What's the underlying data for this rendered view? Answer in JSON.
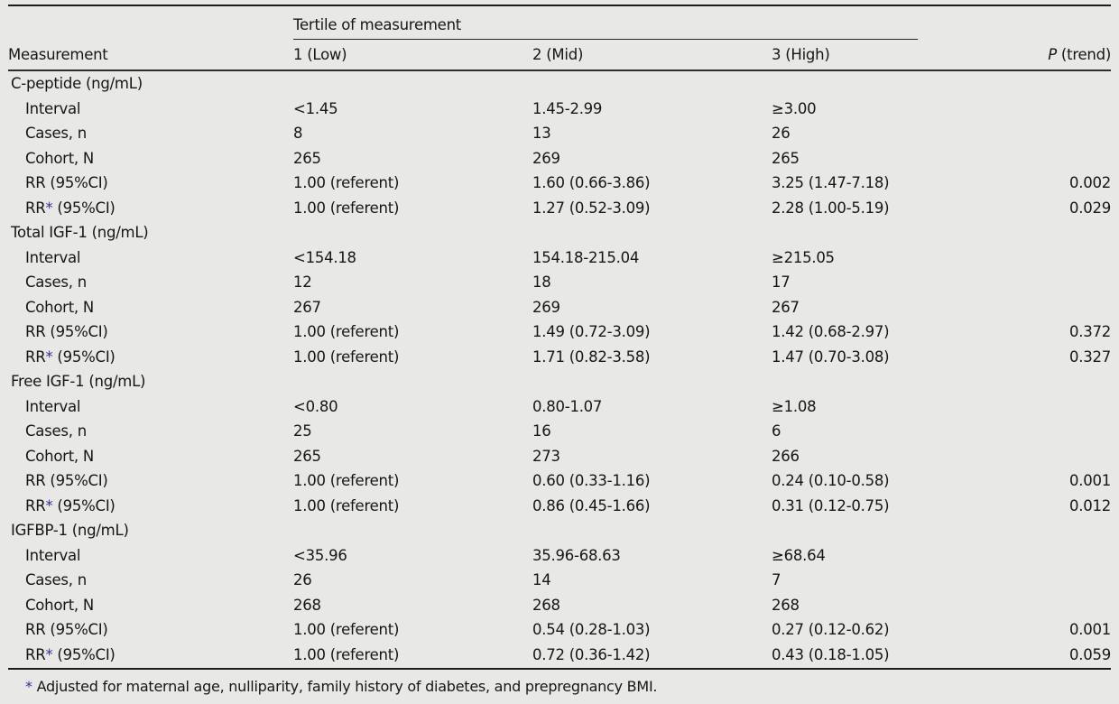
{
  "colors": {
    "background": "#e8e8e6",
    "text": "#161616",
    "asterisk_accent": "#30309c"
  },
  "header": {
    "measurement_label": "Measurement",
    "tertile_group_label": "Tertile of measurement",
    "tertile_columns": [
      "1 (Low)",
      "2 (Mid)",
      "3 (High)"
    ],
    "p_trend_italic": "P",
    "p_trend_rest": " (trend)"
  },
  "sections": [
    {
      "name": "C-peptide (ng/mL)",
      "rows": [
        {
          "label": "Interval",
          "values": [
            "<1.45",
            "1.45-2.99",
            "≥3.00"
          ],
          "p": ""
        },
        {
          "label": "Cases, n",
          "values": [
            "8",
            "13",
            "26"
          ],
          "p": ""
        },
        {
          "label": "Cohort, N",
          "values": [
            "265",
            "269",
            "265"
          ],
          "p": ""
        },
        {
          "label": "RR (95%CI)",
          "values": [
            "1.00 (referent)",
            "1.60 (0.66-3.86)",
            "3.25 (1.47-7.18)"
          ],
          "p": "0.002"
        },
        {
          "label": "RR",
          "star": "*",
          "label_suffix": " (95%CI)",
          "values": [
            "1.00 (referent)",
            "1.27 (0.52-3.09)",
            "2.28 (1.00-5.19)"
          ],
          "p": "0.029"
        }
      ]
    },
    {
      "name": "Total IGF-1 (ng/mL)",
      "rows": [
        {
          "label": "Interval",
          "values": [
            "<154.18",
            "154.18-215.04",
            "≥215.05"
          ],
          "p": ""
        },
        {
          "label": "Cases, n",
          "values": [
            "12",
            "18",
            "17"
          ],
          "p": ""
        },
        {
          "label": "Cohort, N",
          "values": [
            "267",
            "269",
            "267"
          ],
          "p": ""
        },
        {
          "label": "RR (95%CI)",
          "values": [
            "1.00 (referent)",
            "1.49 (0.72-3.09)",
            "1.42 (0.68-2.97)"
          ],
          "p": "0.372"
        },
        {
          "label": "RR",
          "star": "*",
          "label_suffix": " (95%CI)",
          "values": [
            "1.00 (referent)",
            "1.71 (0.82-3.58)",
            "1.47 (0.70-3.08)"
          ],
          "p": "0.327"
        }
      ]
    },
    {
      "name": "Free IGF-1 (ng/mL)",
      "rows": [
        {
          "label": "Interval",
          "values": [
            "<0.80",
            "0.80-1.07",
            "≥1.08"
          ],
          "p": ""
        },
        {
          "label": "Cases, n",
          "values": [
            "25",
            "16",
            "6"
          ],
          "p": ""
        },
        {
          "label": "Cohort, N",
          "values": [
            "265",
            "273",
            "266"
          ],
          "p": ""
        },
        {
          "label": "RR (95%CI)",
          "values": [
            "1.00 (referent)",
            "0.60 (0.33-1.16)",
            "0.24 (0.10-0.58)"
          ],
          "p": "0.001"
        },
        {
          "label": "RR",
          "star": "*",
          "label_suffix": " (95%CI)",
          "values": [
            "1.00 (referent)",
            "0.86 (0.45-1.66)",
            "0.31 (0.12-0.75)"
          ],
          "p": "0.012"
        }
      ]
    },
    {
      "name": "IGFBP-1 (ng/mL)",
      "rows": [
        {
          "label": "Interval",
          "values": [
            "<35.96",
            "35.96-68.63",
            "≥68.64"
          ],
          "p": ""
        },
        {
          "label": "Cases, n",
          "values": [
            "26",
            "14",
            "7"
          ],
          "p": ""
        },
        {
          "label": "Cohort, N",
          "values": [
            "268",
            "268",
            "268"
          ],
          "p": ""
        },
        {
          "label": "RR (95%CI)",
          "values": [
            "1.00 (referent)",
            "0.54 (0.28-1.03)",
            "0.27 (0.12-0.62)"
          ],
          "p": "0.001"
        },
        {
          "label": "RR",
          "star": "*",
          "label_suffix": " (95%CI)",
          "values": [
            "1.00 (referent)",
            "0.72 (0.36-1.42)",
            "0.43 (0.18-1.05)"
          ],
          "p": "0.059"
        }
      ]
    }
  ],
  "footnote": {
    "star": "*",
    "text": " Adjusted for maternal age, nulliparity, family history of diabetes, and prepregnancy BMI."
  }
}
